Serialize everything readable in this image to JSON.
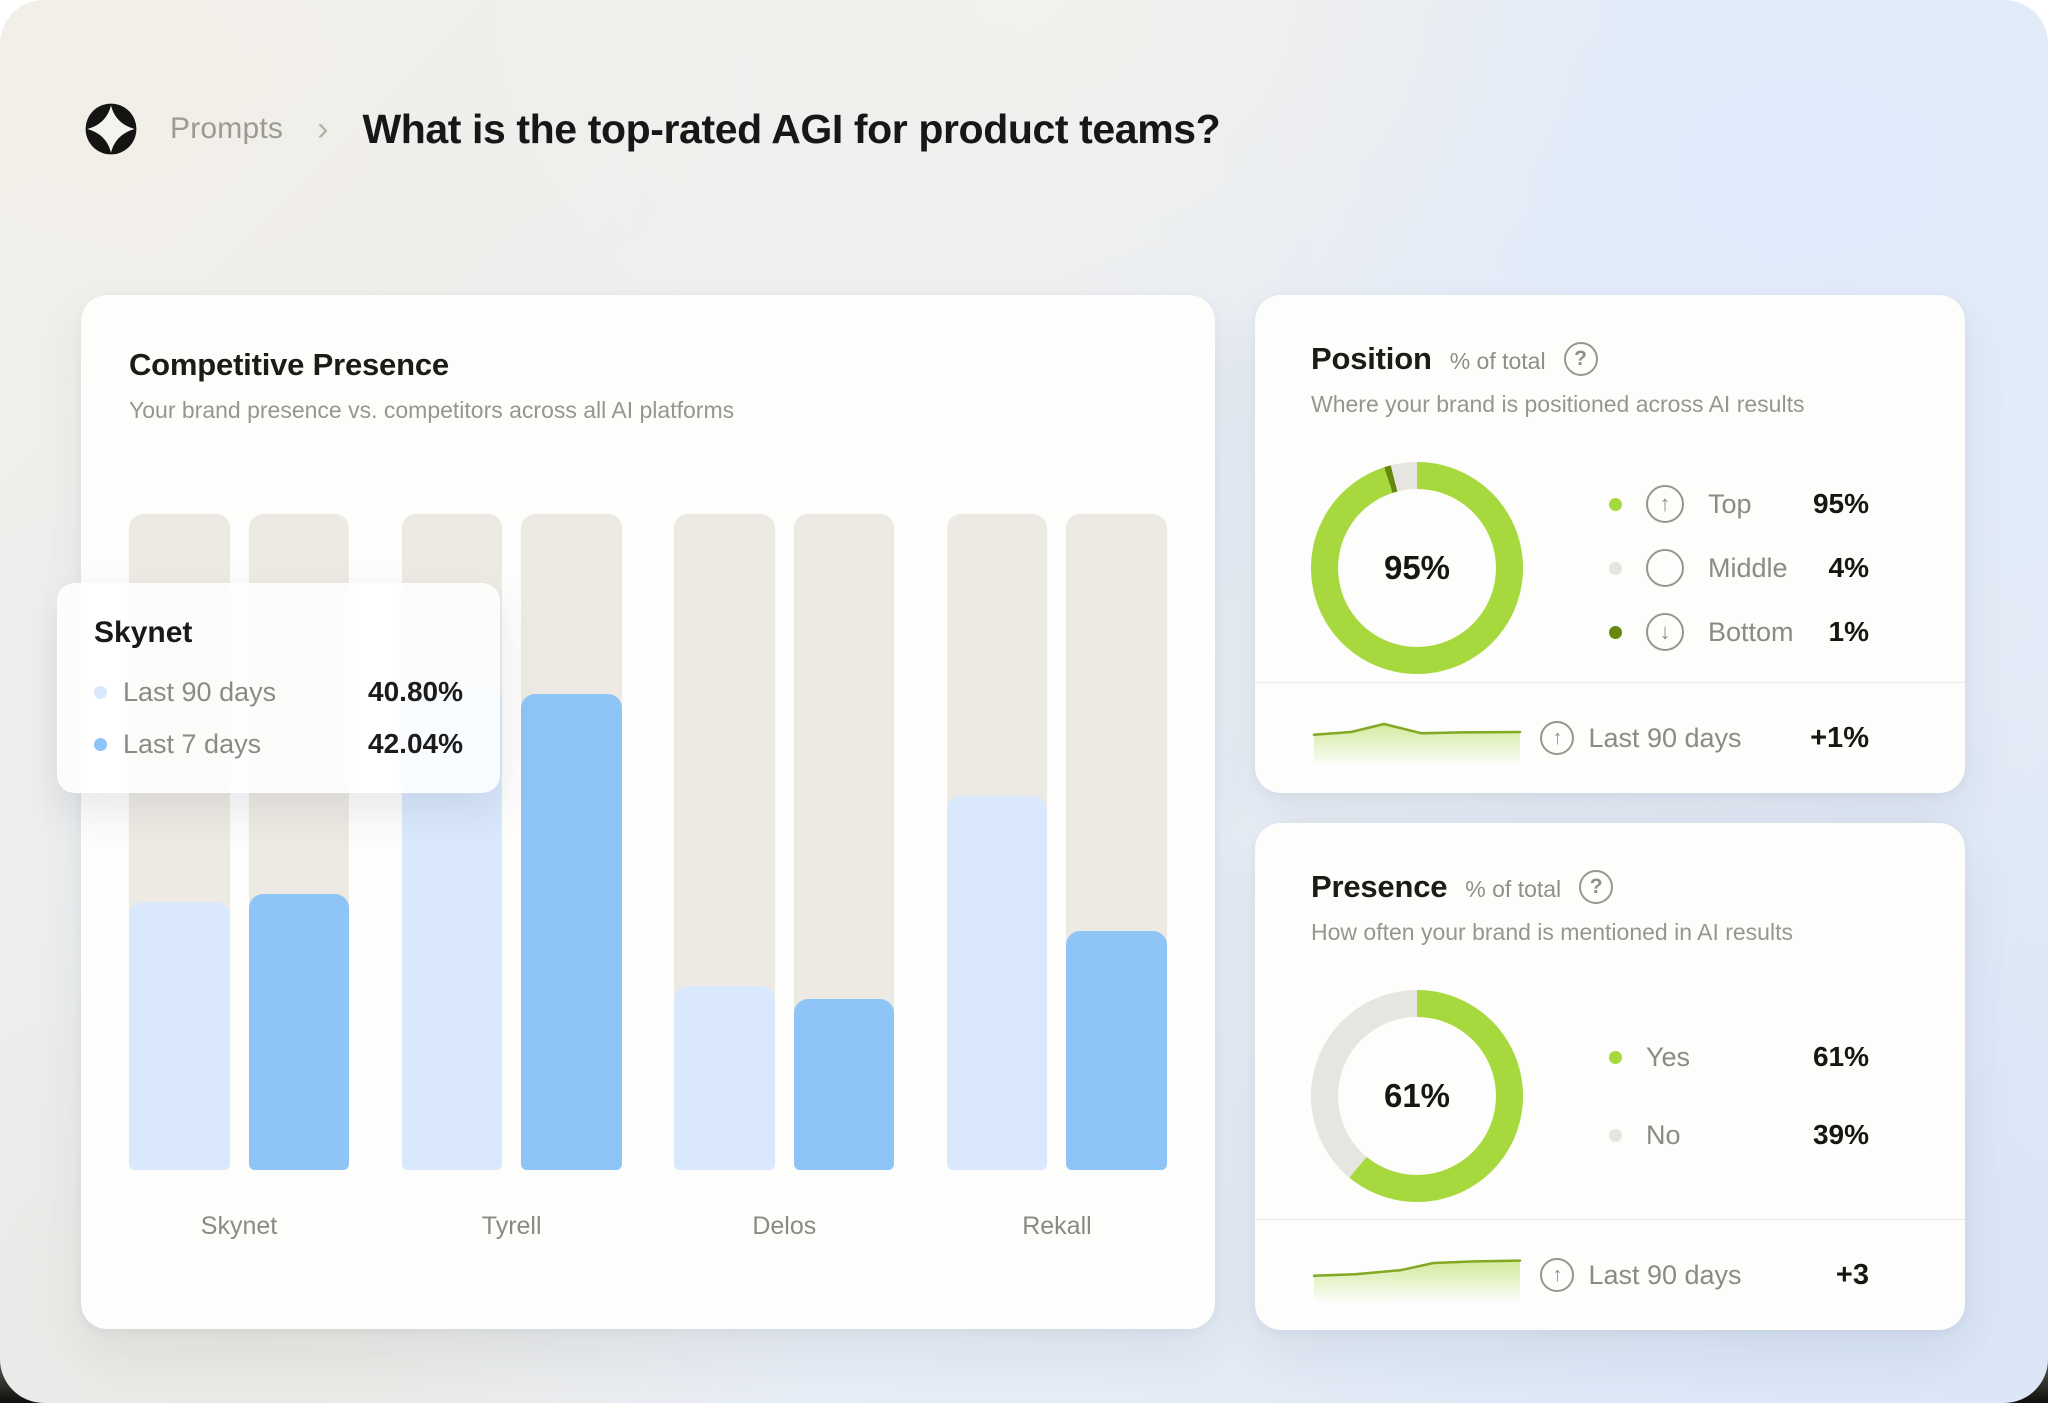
{
  "header": {
    "breadcrumb": "Prompts",
    "separator": "›",
    "title": "What is the top-rated AGI for product teams?"
  },
  "colors": {
    "accent_green": "#a7d83e",
    "dark_green": "#66880f",
    "neutral_segment": "#e7e5df",
    "bar_track": "#edeae3",
    "bar_light_blue": "#d9e8fc",
    "bar_blue": "#8fc4f7",
    "spark_stroke": "#82a824"
  },
  "competitive": {
    "title": "Competitive Presence",
    "subtitle": "Your brand presence vs. competitors across all AI platforms",
    "tooltip": {
      "title": "Skynet",
      "rows": [
        {
          "label": "Last 90 days",
          "value": "40.80%",
          "color": "#d9e8fc"
        },
        {
          "label": "Last 7 days",
          "value": "42.04%",
          "color": "#8fc4f7"
        }
      ]
    },
    "chart_data": {
      "type": "bar",
      "categories": [
        "Skynet",
        "Tyrell",
        "Delos",
        "Rekall"
      ],
      "series": [
        {
          "name": "Last 90 days",
          "color": "#d9e8fc",
          "values": [
            40.8,
            74,
            28,
            57
          ]
        },
        {
          "name": "Last 7 days",
          "color": "#8fc4f7",
          "values": [
            42.04,
            72.5,
            26,
            36.5
          ]
        }
      ],
      "ylim": [
        0,
        100
      ],
      "grid": false,
      "track_color": "#edeae3"
    }
  },
  "position": {
    "title": "Position",
    "unit": "% of total",
    "help": "?",
    "subtitle": "Where your brand is positioned across AI results",
    "chart_data": {
      "type": "pie",
      "center_label": "95%",
      "segments": [
        {
          "label": "Top",
          "value": 95,
          "display": "95%",
          "color": "#a7d83e",
          "icon": "up"
        },
        {
          "label": "Middle",
          "value": 4,
          "display": "4%",
          "color": "#e7e5df",
          "icon": "none"
        },
        {
          "label": "Bottom",
          "value": 1,
          "display": "1%",
          "color": "#66880f",
          "icon": "down"
        }
      ],
      "draw_order": [
        0,
        2,
        1
      ],
      "legend_position": "right"
    },
    "footer": {
      "label": "Last 90 days",
      "value": "+1%",
      "sparkline": [
        [
          0,
          0.62
        ],
        [
          0.18,
          0.55
        ],
        [
          0.34,
          0.35
        ],
        [
          0.52,
          0.58
        ],
        [
          0.72,
          0.56
        ],
        [
          1,
          0.55
        ]
      ]
    }
  },
  "presence": {
    "title": "Presence",
    "unit": "% of total",
    "help": "?",
    "subtitle": "How often your brand is mentioned in AI results",
    "chart_data": {
      "type": "pie",
      "center_label": "61%",
      "segments": [
        {
          "label": "Yes",
          "value": 61,
          "display": "61%",
          "color": "#a7d83e",
          "icon": "none"
        },
        {
          "label": "No",
          "value": 39,
          "display": "39%",
          "color": "#e7e5df",
          "icon": "none"
        }
      ],
      "draw_order": [
        0,
        1
      ],
      "legend_position": "right"
    },
    "footer": {
      "label": "Last 90 days",
      "value": "+3",
      "sparkline": [
        [
          0,
          0.72
        ],
        [
          0.2,
          0.68
        ],
        [
          0.42,
          0.58
        ],
        [
          0.58,
          0.4
        ],
        [
          0.78,
          0.36
        ],
        [
          1,
          0.34
        ]
      ]
    }
  }
}
